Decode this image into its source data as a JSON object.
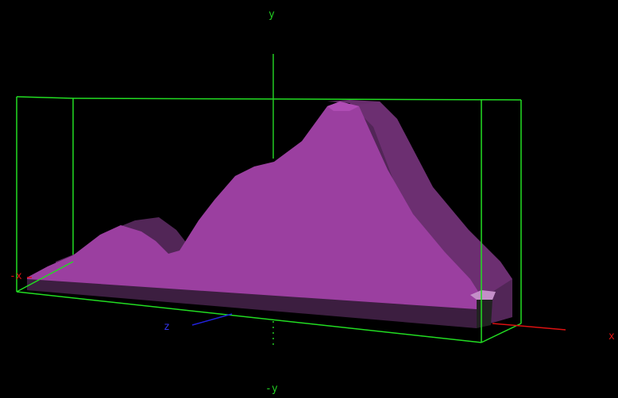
{
  "axes": {
    "pos_y_label": "y",
    "neg_y_label": "-y",
    "pos_x_label": "x",
    "neg_x_label": "-x",
    "z_label": "z"
  },
  "colors": {
    "background": "#000000",
    "bounding_box": "#22dd22",
    "y_axis": "#22cc22",
    "x_axis": "#dd1111",
    "z_axis": "#2222dd",
    "surface_front": "#9b3fa0",
    "surface_side": "#5b2a60",
    "surface_top": "#b04cb5"
  }
}
